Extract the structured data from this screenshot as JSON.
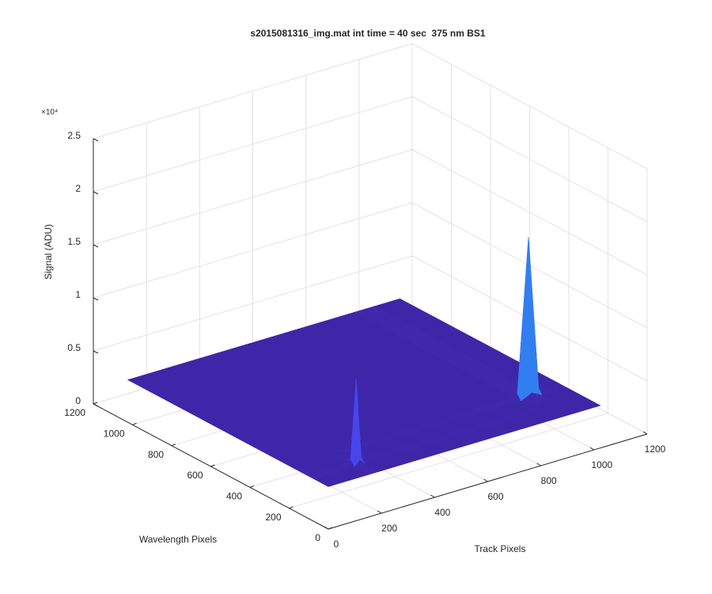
{
  "chart_data": {
    "type": "surface",
    "title": "s2015081316_img.mat int time = 40 sec  375 nm BS1",
    "x_label": "Track Pixels",
    "y_label": "Wavelength Pixels",
    "z_label": "Signal (ADU)",
    "z_exponent_label": "×10⁴",
    "x": [
      0,
      150,
      171,
      190,
      850,
      892,
      930,
      1024
    ],
    "y": [
      0,
      70,
      90,
      110,
      170,
      188,
      210,
      1024
    ],
    "z": [
      [
        4000,
        4000,
        4000,
        4000,
        4000,
        4000,
        4000,
        4000
      ],
      [
        4000,
        4000,
        4500,
        4000,
        4000,
        4000,
        4000,
        4000
      ],
      [
        4000,
        4500,
        12000,
        4500,
        4000,
        4000,
        4000,
        4000
      ],
      [
        4000,
        4000,
        4500,
        4000,
        4000,
        4000,
        4000,
        4000
      ],
      [
        4000,
        4000,
        4000,
        4000,
        4000,
        4500,
        4000,
        4000
      ],
      [
        4000,
        4000,
        4000,
        4000,
        4500,
        19000,
        4500,
        4000
      ],
      [
        4000,
        4000,
        4000,
        4000,
        4000,
        4500,
        4000,
        4000
      ],
      [
        4000,
        4000,
        4000,
        4000,
        4000,
        4000,
        4000,
        4000
      ]
    ],
    "xlim": [
      0,
      1200
    ],
    "xticks": [
      0,
      200,
      400,
      600,
      800,
      1000,
      1200
    ],
    "ylim": [
      0,
      1200
    ],
    "yticks": [
      0,
      200,
      400,
      600,
      800,
      1000,
      1200
    ],
    "zlim": [
      0,
      25000
    ],
    "zticks": [
      0,
      {
        "value": 5000,
        "label": "0.5"
      },
      {
        "value": 10000,
        "label": "1"
      },
      {
        "value": 15000,
        "label": "1.5"
      },
      {
        "value": 20000,
        "label": "2"
      },
      {
        "value": 25000,
        "label": "2.5"
      }
    ],
    "grid": true
  }
}
